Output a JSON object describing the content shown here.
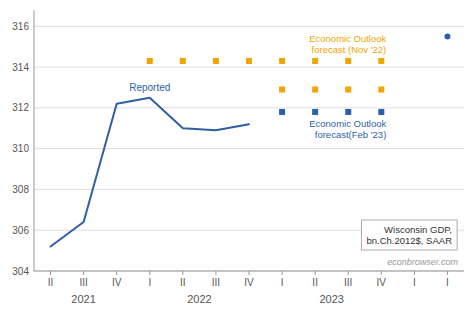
{
  "chart_data": {
    "type": "line",
    "categories": [
      "II",
      "III",
      "IV",
      "I",
      "II",
      "III",
      "IV",
      "I",
      "II",
      "III",
      "IV",
      "I",
      "I"
    ],
    "year_labels": [
      {
        "label": "2021",
        "from": 0,
        "to": 2
      },
      {
        "label": "2022",
        "from": 3,
        "to": 6
      },
      {
        "label": "2023",
        "from": 7,
        "to": 10
      }
    ],
    "series": [
      {
        "type": "line",
        "color": "#2e5fa3",
        "label": "Reported",
        "values": [
          305.2,
          306.4,
          312.2,
          312.5,
          311.0,
          310.9,
          311.2,
          null,
          null,
          null,
          null,
          null,
          315.5
        ]
      },
      {
        "type": "scatter",
        "marker": "square",
        "color": "#f0a500",
        "label": "Economic Outlook\nforecast (Nov '22)",
        "values": [
          null,
          null,
          null,
          314.3,
          314.3,
          314.3,
          314.3,
          314.3,
          314.3,
          314.3,
          314.3,
          null,
          null
        ]
      },
      {
        "type": "scatter",
        "marker": "square",
        "color": "#2e5fa3",
        "label": "Economic Outlook\nforecast(Feb '23)",
        "values": [
          null,
          null,
          null,
          null,
          null,
          null,
          null,
          311.8,
          311.8,
          311.8,
          311.8,
          null,
          null
        ]
      },
      {
        "type": "scatter",
        "marker": "square",
        "color": "#f0a500",
        "values": [
          null,
          null,
          null,
          null,
          null,
          null,
          null,
          312.9,
          312.9,
          312.9,
          312.9,
          null,
          null
        ]
      }
    ],
    "annotations": [
      "Wisconsin GDP,\nbn.Ch.2012$, SAAR"
    ],
    "source": "econbrowser.com",
    "ylim": [
      304,
      316.8
    ],
    "yticks": [
      304,
      306,
      308,
      310,
      312,
      314,
      316
    ],
    "grid": true
  }
}
